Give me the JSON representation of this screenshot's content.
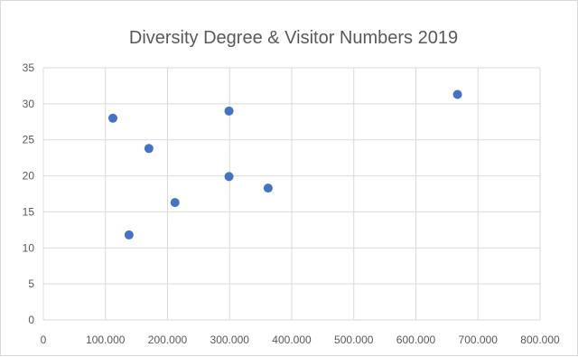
{
  "chart_data": {
    "type": "scatter",
    "title": "Diversity Degree & Visitor Numbers 2019",
    "xlabel": "",
    "ylabel": "",
    "xlim": [
      0,
      800000
    ],
    "ylim": [
      0,
      35
    ],
    "grid": true,
    "legend": "none",
    "marker_color": "#4472C4",
    "x_ticks": [
      0,
      100000,
      200000,
      300000,
      400000,
      500000,
      600000,
      700000,
      800000
    ],
    "x_tick_labels": [
      "0",
      "100.000",
      "200.000",
      "300.000",
      "400.000",
      "500.000",
      "600.000",
      "700.000",
      "800.000"
    ],
    "y_ticks": [
      0,
      5,
      10,
      15,
      20,
      25,
      30,
      35
    ],
    "y_tick_labels": [
      "0",
      "5",
      "10",
      "15",
      "20",
      "25",
      "30",
      "35"
    ],
    "points": [
      {
        "x": 112000,
        "y": 28.0
      },
      {
        "x": 138000,
        "y": 11.8
      },
      {
        "x": 170000,
        "y": 23.8
      },
      {
        "x": 212000,
        "y": 16.3
      },
      {
        "x": 299000,
        "y": 29.0
      },
      {
        "x": 299000,
        "y": 19.9
      },
      {
        "x": 362000,
        "y": 18.3
      },
      {
        "x": 667000,
        "y": 31.3
      }
    ]
  }
}
